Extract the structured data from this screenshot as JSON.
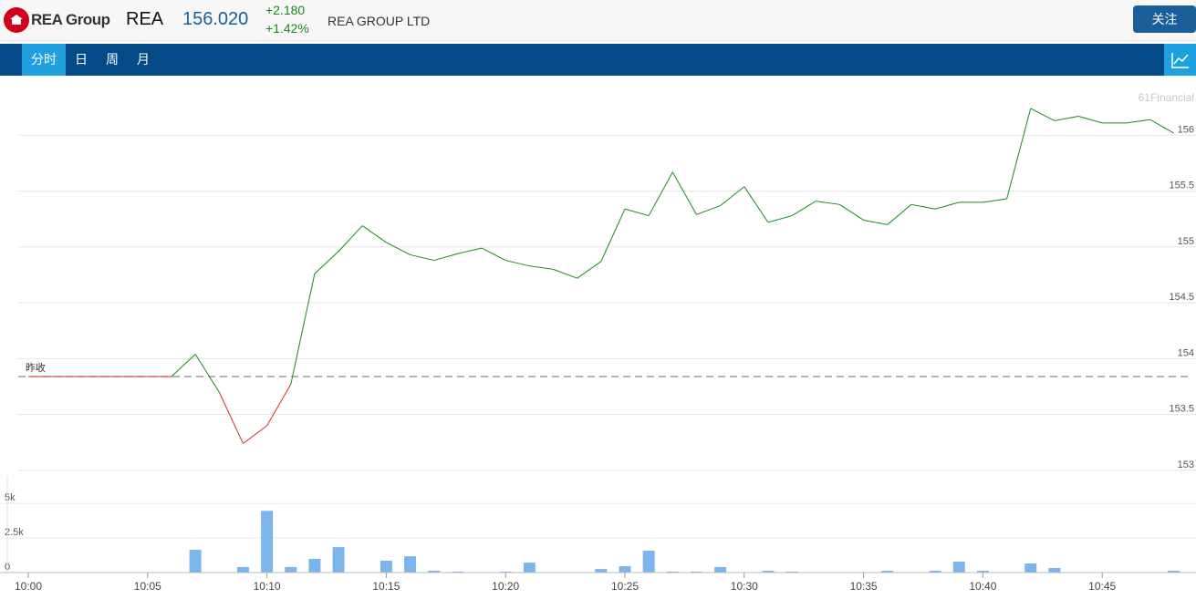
{
  "header": {
    "logo": "REA Group",
    "symbol": "REA",
    "price": "156.020",
    "change": "+2.180",
    "change_pct": "+1.42%",
    "name": "REA GROUP LTD",
    "follow_button": "关注"
  },
  "tabs": [
    "分时",
    "日",
    "周",
    "月"
  ],
  "watermark": "61Financial",
  "chart_data": [
    {
      "type": "line",
      "values": [
        153.84,
        153.84,
        153.84,
        153.84,
        153.84,
        153.84,
        153.84,
        154.04,
        153.7,
        153.24,
        153.4,
        153.77,
        154.76,
        154.96,
        155.19,
        155.04,
        154.93,
        154.88,
        154.94,
        154.99,
        154.88,
        154.83,
        154.8,
        154.72,
        154.87,
        155.34,
        155.28,
        155.67,
        155.29,
        155.37,
        155.54,
        155.22,
        155.28,
        155.41,
        155.38,
        155.24,
        155.2,
        155.38,
        155.34,
        155.4,
        155.4,
        155.43,
        156.24,
        156.13,
        156.17,
        156.11,
        156.11,
        156.14,
        156.02
      ],
      "reference_value": 153.84,
      "reference_label": "昨收",
      "up_color": "#1a8a1a",
      "down_color": "#d42a2a",
      "ylim": [
        152.95,
        156.46
      ],
      "yticks": [
        153,
        153.5,
        154,
        154.5,
        155,
        155.5,
        156
      ],
      "grid": true
    },
    {
      "type": "bar",
      "categories": [
        "10:00",
        null,
        null,
        null,
        null,
        "10:05",
        null,
        null,
        null,
        null,
        "10:10",
        null,
        null,
        null,
        null,
        "10:15",
        null,
        null,
        null,
        null,
        "10:20",
        null,
        null,
        null,
        null,
        "10:25",
        null,
        null,
        null,
        null,
        "10:30",
        null,
        null,
        null,
        null,
        "10:35",
        null,
        null,
        null,
        null,
        "10:40",
        null,
        null,
        null,
        null,
        "10:45",
        null,
        null,
        null
      ],
      "values": [
        0,
        0,
        0,
        0,
        0,
        0,
        0,
        1650,
        0,
        400,
        4470,
        400,
        990,
        1840,
        0,
        860,
        1180,
        130,
        70,
        0,
        70,
        720,
        30,
        0,
        260,
        460,
        1580,
        70,
        70,
        400,
        0,
        130,
        70,
        0,
        0,
        0,
        130,
        0,
        130,
        790,
        130,
        0,
        660,
        330,
        0,
        30,
        0,
        0,
        130
      ],
      "color": "#7cb5ec",
      "ylim": [
        0,
        7000
      ],
      "yticks": [
        0,
        {
          "value": 2500,
          "label": "2.5k"
        },
        {
          "value": 5000,
          "label": "5k"
        }
      ],
      "grid": true
    }
  ]
}
